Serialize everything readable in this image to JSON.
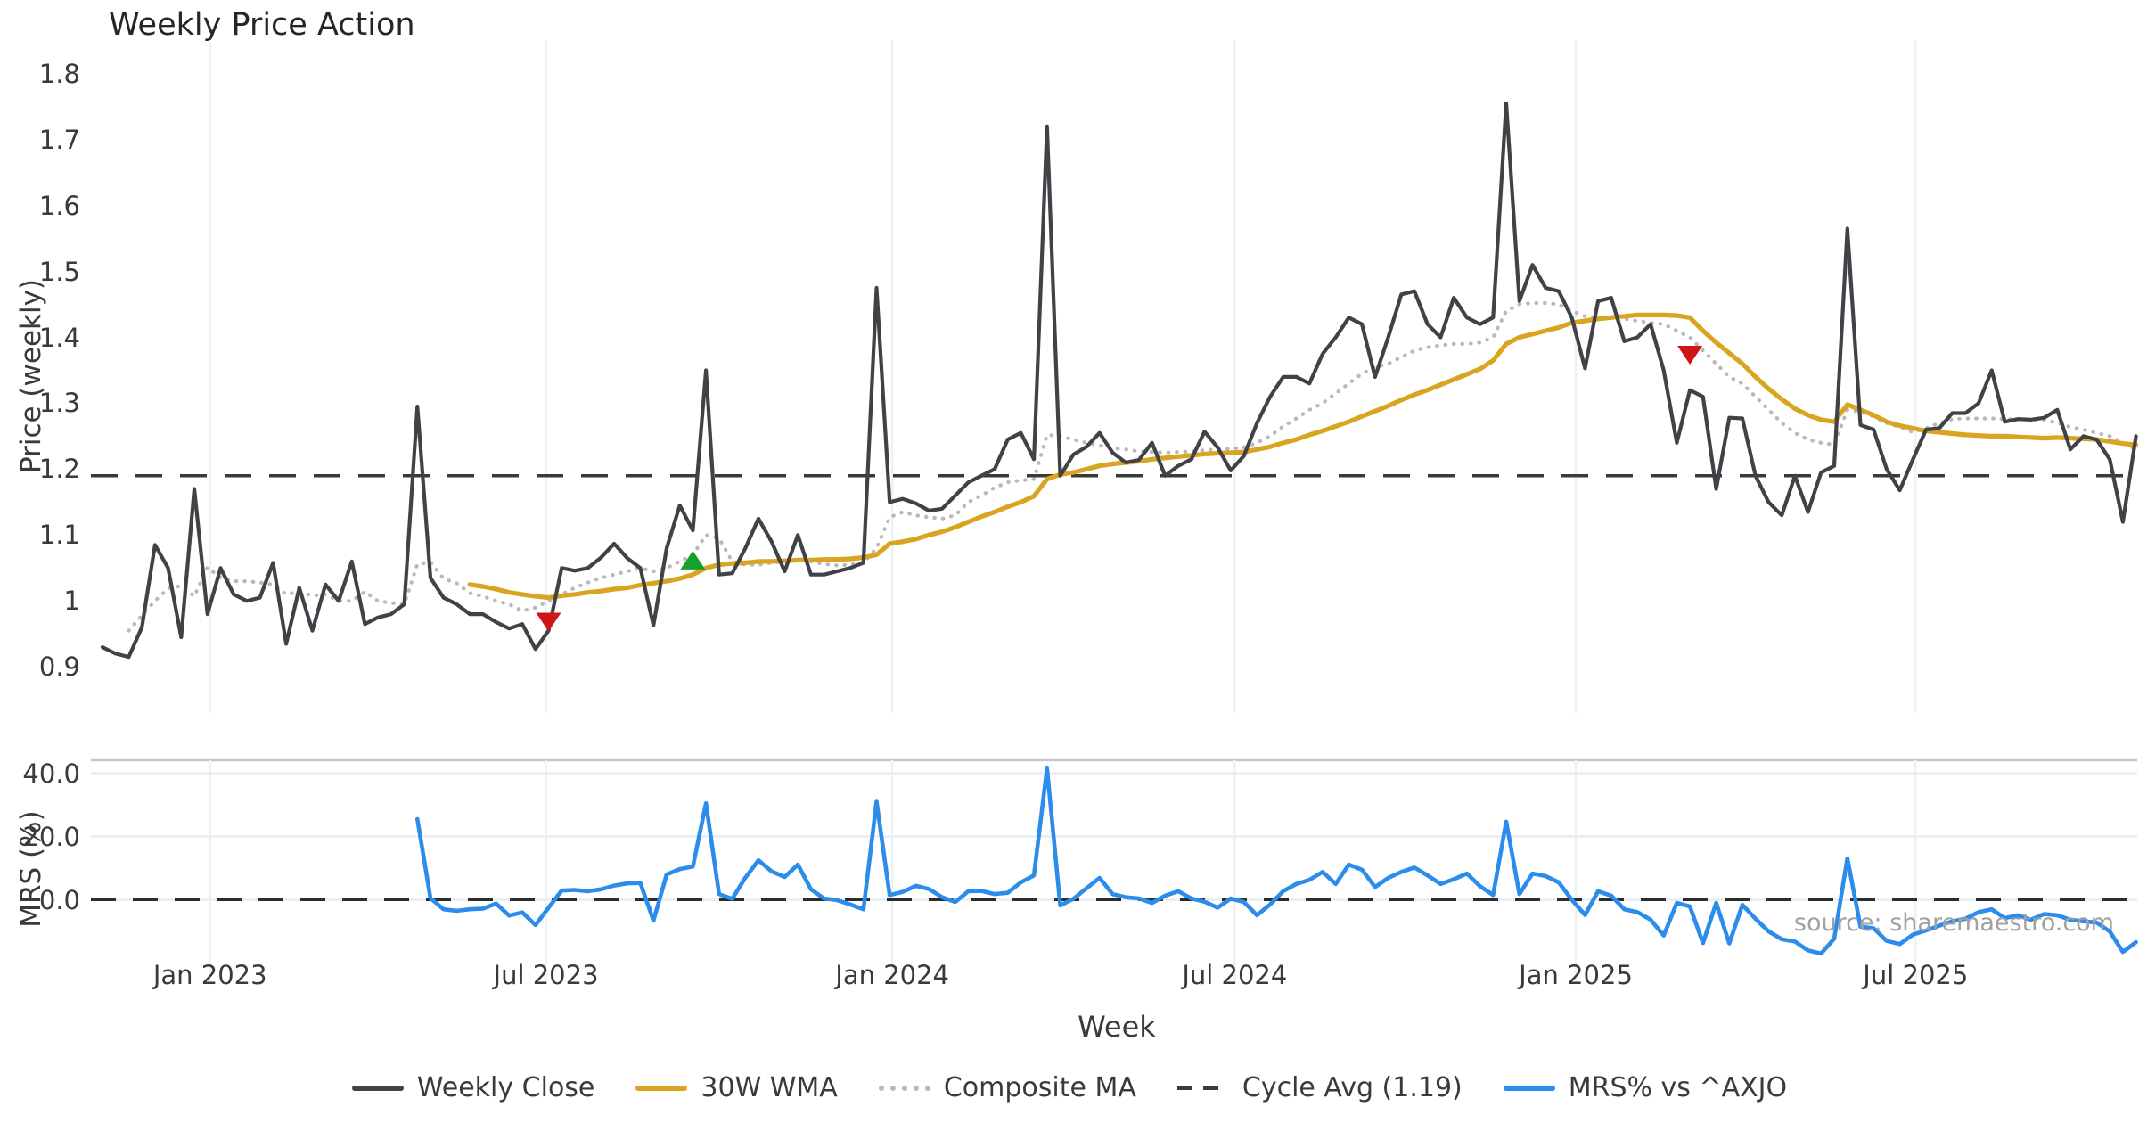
{
  "title": "Weekly Price Action",
  "source_note": "source: sharemaestro.com",
  "axes": {
    "price": {
      "label": "Price (weekly)",
      "tick_labels": [
        "1.8",
        "1.7",
        "1.6",
        "1.5",
        "1.4",
        "1.3",
        "1.2",
        "1.1",
        "1",
        "0.9"
      ],
      "tick_values": [
        1.8,
        1.7,
        1.6,
        1.5,
        1.4,
        1.3,
        1.2,
        1.1,
        1.0,
        0.9
      ]
    },
    "mrs": {
      "label": "MRS (%)",
      "tick_labels": [
        "40.0",
        "20.0",
        "0.0"
      ],
      "tick_values": [
        40,
        20,
        0
      ]
    },
    "x": {
      "label": "Week",
      "tick_labels": [
        "Jan 2023",
        "Jul 2023",
        "Jan 2024",
        "Jul 2024",
        "Jan 2025",
        "Jul 2025"
      ],
      "tick_weeks": [
        8.2,
        33.8,
        60.2,
        86.3,
        112.3,
        138.2
      ]
    }
  },
  "legend": {
    "items": [
      {
        "label": "Weekly Close",
        "style": "solid",
        "color": "#3f4246"
      },
      {
        "label": "30W WMA",
        "style": "solid",
        "color": "#d9a521"
      },
      {
        "label": "Composite MA",
        "style": "dotted",
        "color": "#b9b9b9"
      },
      {
        "label": "Cycle Avg (1.19)",
        "style": "dashed",
        "color": "#3a3a3a"
      },
      {
        "label": "MRS% vs ^AXJO",
        "style": "solid",
        "color": "#2b8cec"
      }
    ]
  },
  "colors": {
    "weekly_close": "#3f4246",
    "wma": "#d9a521",
    "composite": "#b9b9b9",
    "cycle": "#3a3a3a",
    "mrs": "#2b8cec",
    "sell_marker": "#cf1515",
    "buy_marker": "#17a02c",
    "grid_vertical": "#eef1f4",
    "grid_horizontal": "#e9edf2",
    "panel_border": "#c4c6c9"
  },
  "chart_data": {
    "type": "line",
    "title": "Weekly Price Action",
    "xlabel": "Week",
    "x_unit": "weekly index (0 = first plotted week)",
    "n_weeks": 156,
    "cycle_avg": 1.19,
    "legend_position": "bottom center",
    "panels": [
      {
        "name": "price",
        "ylabel": "Price (weekly)",
        "ylim": [
          0.83,
          1.851
        ],
        "yticks": [
          0.9,
          1.0,
          1.1,
          1.2,
          1.3,
          1.4,
          1.5,
          1.6,
          1.7,
          1.8
        ],
        "grid": "vertical-only"
      },
      {
        "name": "mrs",
        "ylabel": "MRS (%)",
        "ylim": [
          -26.9,
          44.1
        ],
        "yticks": [
          0,
          20,
          40
        ],
        "grid": "both",
        "zero_line": "dashed"
      }
    ],
    "series": [
      {
        "name": "Weekly Close",
        "panel": "price",
        "style": "solid",
        "color": "#3f4246",
        "values": [
          0.93,
          0.92,
          0.915,
          0.96,
          1.085,
          1.05,
          0.945,
          1.17,
          0.98,
          1.05,
          1.01,
          1.0,
          1.005,
          1.058,
          0.935,
          1.02,
          0.955,
          1.025,
          1.0,
          1.06,
          0.965,
          0.975,
          0.98,
          0.995,
          1.295,
          1.035,
          1.005,
          0.995,
          0.98,
          0.98,
          0.968,
          0.958,
          0.965,
          0.927,
          0.955,
          1.05,
          1.046,
          1.05,
          1.066,
          1.087,
          1.065,
          1.05,
          0.963,
          1.08,
          1.145,
          1.107,
          1.35,
          1.04,
          1.042,
          1.08,
          1.125,
          1.09,
          1.045,
          1.1,
          1.04,
          1.04,
          1.045,
          1.05,
          1.058,
          1.475,
          1.15,
          1.155,
          1.148,
          1.137,
          1.14,
          1.16,
          1.18,
          1.19,
          1.2,
          1.245,
          1.255,
          1.215,
          1.72,
          1.19,
          1.222,
          1.234,
          1.255,
          1.225,
          1.21,
          1.214,
          1.24,
          1.19,
          1.205,
          1.215,
          1.257,
          1.233,
          1.198,
          1.22,
          1.27,
          1.31,
          1.34,
          1.34,
          1.33,
          1.375,
          1.4,
          1.43,
          1.42,
          1.34,
          1.4,
          1.465,
          1.47,
          1.42,
          1.4,
          1.46,
          1.43,
          1.42,
          1.43,
          1.755,
          1.455,
          1.51,
          1.475,
          1.47,
          1.43,
          1.353,
          1.455,
          1.46,
          1.394,
          1.4,
          1.42,
          1.35,
          1.24,
          1.32,
          1.31,
          1.17,
          1.278,
          1.277,
          1.19,
          1.15,
          1.13,
          1.19,
          1.135,
          1.195,
          1.205,
          1.565,
          1.267,
          1.26,
          1.2,
          1.168,
          1.215,
          1.26,
          1.262,
          1.285,
          1.285,
          1.3,
          1.35,
          1.272,
          1.276,
          1.275,
          1.278,
          1.29,
          1.23,
          1.25,
          1.245,
          1.215,
          1.12,
          1.25
        ]
      },
      {
        "name": "30W WMA",
        "panel": "price",
        "style": "solid",
        "color": "#d9a521",
        "values": [
          null,
          null,
          null,
          null,
          null,
          null,
          null,
          null,
          null,
          null,
          null,
          null,
          null,
          null,
          null,
          null,
          null,
          null,
          null,
          null,
          null,
          null,
          null,
          null,
          null,
          null,
          null,
          null,
          1.025,
          1.022,
          1.018,
          1.013,
          1.01,
          1.007,
          1.005,
          1.008,
          1.01,
          1.013,
          1.015,
          1.018,
          1.02,
          1.024,
          1.027,
          1.03,
          1.034,
          1.04,
          1.05,
          1.055,
          1.057,
          1.058,
          1.06,
          1.06,
          1.061,
          1.062,
          1.062,
          1.063,
          1.063,
          1.064,
          1.066,
          1.07,
          1.087,
          1.09,
          1.094,
          1.1,
          1.105,
          1.112,
          1.12,
          1.128,
          1.135,
          1.143,
          1.15,
          1.159,
          1.185,
          1.192,
          1.195,
          1.2,
          1.205,
          1.208,
          1.21,
          1.212,
          1.215,
          1.217,
          1.219,
          1.221,
          1.223,
          1.224,
          1.225,
          1.226,
          1.23,
          1.234,
          1.24,
          1.245,
          1.252,
          1.258,
          1.265,
          1.272,
          1.28,
          1.288,
          1.296,
          1.305,
          1.313,
          1.32,
          1.328,
          1.336,
          1.344,
          1.352,
          1.365,
          1.39,
          1.4,
          1.405,
          1.41,
          1.415,
          1.422,
          1.425,
          1.428,
          1.43,
          1.432,
          1.434,
          1.434,
          1.434,
          1.433,
          1.43,
          1.41,
          1.392,
          1.376,
          1.36,
          1.34,
          1.322,
          1.306,
          1.292,
          1.282,
          1.275,
          1.272,
          1.298,
          1.29,
          1.282,
          1.272,
          1.266,
          1.262,
          1.258,
          1.256,
          1.254,
          1.252,
          1.251,
          1.25,
          1.25,
          1.249,
          1.248,
          1.247,
          1.248,
          1.247,
          1.246,
          1.245,
          1.242,
          1.239,
          1.237
        ]
      },
      {
        "name": "Composite MA",
        "panel": "price",
        "style": "dotted",
        "color": "#b9b9b9",
        "values": [
          null,
          null,
          0.955,
          0.978,
          1.0,
          1.019,
          1.023,
          1.007,
          1.051,
          1.035,
          1.03,
          1.03,
          1.028,
          1.025,
          1.01,
          1.014,
          1.008,
          1.01,
          1.0,
          1.0,
          1.014,
          1.0,
          0.997,
          0.995,
          1.056,
          1.059,
          1.034,
          1.027,
          1.012,
          1.007,
          1.0,
          0.995,
          0.985,
          0.99,
          1.0,
          1.01,
          1.02,
          1.028,
          1.035,
          1.04,
          1.045,
          1.05,
          1.045,
          1.05,
          1.06,
          1.07,
          1.1,
          1.095,
          1.06,
          1.055,
          1.055,
          1.058,
          1.06,
          1.062,
          1.06,
          1.056,
          1.054,
          1.055,
          1.058,
          1.08,
          1.127,
          1.135,
          1.13,
          1.127,
          1.125,
          1.13,
          1.15,
          1.16,
          1.172,
          1.18,
          1.183,
          1.185,
          1.252,
          1.25,
          1.245,
          1.24,
          1.236,
          1.232,
          1.23,
          1.227,
          1.226,
          1.225,
          1.226,
          1.227,
          1.229,
          1.23,
          1.231,
          1.233,
          1.24,
          1.25,
          1.265,
          1.277,
          1.29,
          1.3,
          1.315,
          1.33,
          1.345,
          1.355,
          1.36,
          1.37,
          1.38,
          1.385,
          1.388,
          1.39,
          1.39,
          1.392,
          1.4,
          1.44,
          1.45,
          1.452,
          1.452,
          1.45,
          1.44,
          1.432,
          1.43,
          1.43,
          1.428,
          1.425,
          1.422,
          1.42,
          1.41,
          1.4,
          1.38,
          1.36,
          1.34,
          1.33,
          1.31,
          1.29,
          1.27,
          1.255,
          1.245,
          1.24,
          1.237,
          1.29,
          1.287,
          1.28,
          1.27,
          1.264,
          1.256,
          1.262,
          1.27,
          1.276,
          1.277,
          1.277,
          1.277,
          1.276,
          1.276,
          1.275,
          1.275,
          1.27,
          1.264,
          1.26,
          1.255,
          1.25,
          1.24,
          1.23
        ]
      },
      {
        "name": "MRS% vs ^AXJO",
        "panel": "mrs",
        "style": "solid",
        "color": "#2b8cec",
        "values": [
          null,
          null,
          null,
          null,
          null,
          null,
          null,
          null,
          null,
          null,
          null,
          null,
          null,
          null,
          null,
          null,
          null,
          null,
          null,
          null,
          null,
          null,
          null,
          null,
          25.5,
          0.5,
          -3,
          -3.5,
          -3,
          -2.8,
          -1.2,
          -5,
          -4,
          -8,
          -2.5,
          2.9,
          3.1,
          2.7,
          3.3,
          4.5,
          5.2,
          5.3,
          -6.6,
          8,
          9.7,
          10.5,
          30.5,
          1.8,
          0.3,
          7,
          12.5,
          9,
          7.2,
          11.1,
          3.3,
          0.4,
          -0.1,
          -1.5,
          -3,
          31,
          1.5,
          2.5,
          4.4,
          3.4,
          0.8,
          -0.7,
          2.7,
          2.8,
          1.8,
          2.2,
          5.5,
          7.7,
          41.5,
          -1.8,
          0.3,
          3.6,
          6.9,
          1.8,
          0.8,
          0.4,
          -1.0,
          1.3,
          2.7,
          0.4,
          -0.6,
          -2.5,
          0.4,
          -0.7,
          -4.9,
          -1.5,
          2.7,
          5.0,
          6.3,
          8.8,
          5.0,
          11.1,
          9.5,
          4.0,
          6.9,
          8.8,
          10.2,
          7.7,
          5.0,
          6.5,
          8.3,
          4.3,
          1.5,
          24.7,
          1.8,
          8.3,
          7.5,
          5.5,
          0,
          -4.8,
          2.7,
          1.3,
          -3,
          -3.9,
          -6.3,
          -11.3,
          -1,
          -2.1,
          -13.7,
          -1,
          -13.8,
          -1.6,
          -6,
          -10,
          -12.5,
          -13.2,
          -16,
          -17,
          -12.3,
          13.1,
          -8.5,
          -9,
          -13,
          -14,
          -11,
          -9.7,
          -8.2,
          -6.8,
          -6,
          -3.9,
          -3,
          -5.8,
          -4.9,
          -6.3,
          -4.5,
          -4.9,
          -6.3,
          -6.8,
          -7.2,
          -10,
          -16.5,
          -13.4
        ]
      }
    ],
    "markers": {
      "sell": [
        {
          "week": 34,
          "value": 0.97
        },
        {
          "week": 121,
          "value": 1.375
        }
      ],
      "buy": [
        {
          "week": 45,
          "value": 1.06
        }
      ]
    }
  }
}
